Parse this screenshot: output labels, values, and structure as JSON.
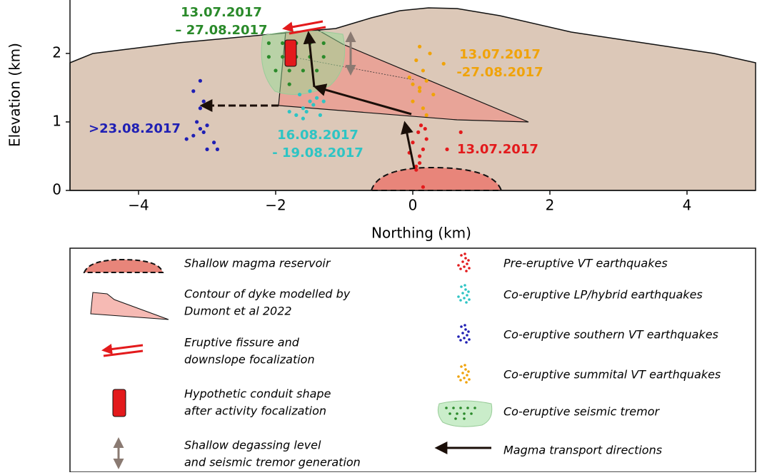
{
  "chart_data": {
    "type": "scatter",
    "x_label": "Northing (km)",
    "y_label": "Elevation (km)",
    "xlim": [
      -5,
      5
    ],
    "ylim": [
      0,
      2.78
    ],
    "xticks": [
      {
        "value": -4,
        "label": "−4"
      },
      {
        "value": -2,
        "label": "−2"
      },
      0,
      2,
      4
    ],
    "yticks": [
      0,
      1,
      2
    ],
    "series": [
      {
        "name": "Pre-eruptive VT earthquakes",
        "color": "#e31a1c",
        "labels": [
          "13.07.2017"
        ],
        "x": [
          0.05,
          0.1,
          0.15,
          0.0,
          0.2,
          0.08,
          0.12,
          -0.05,
          0.18,
          0.1,
          0.7,
          0.5,
          0.15,
          0.05
        ],
        "values": [
          0.35,
          0.5,
          0.6,
          0.7,
          0.75,
          0.85,
          0.95,
          0.55,
          0.9,
          0.4,
          0.85,
          0.6,
          0.05,
          0.3
        ]
      },
      {
        "name": "Co-eruptive LP/hybrid earthquakes",
        "color": "#2ec4c4",
        "labels": [
          "16.08.2017",
          "- 19.08.2017"
        ],
        "x": [
          -1.7,
          -1.6,
          -1.5,
          -1.4,
          -1.55,
          -1.45,
          -1.65,
          -1.35,
          -1.5,
          -1.8,
          -1.6,
          -1.3
        ],
        "values": [
          1.1,
          1.2,
          1.3,
          1.35,
          1.15,
          1.25,
          1.4,
          1.1,
          1.45,
          1.15,
          1.05,
          1.3
        ]
      },
      {
        "name": "Co-eruptive southern VT earthquakes",
        "color": "#1f1fb4",
        "labels": [
          ">23.08.2017"
        ],
        "x": [
          -3.2,
          -3.1,
          -3.0,
          -3.15,
          -3.05,
          -3.1,
          -3.2,
          -2.9,
          -3.0,
          -3.1,
          -2.85,
          -3.3,
          -3.05,
          -3.1
        ],
        "values": [
          0.8,
          0.9,
          0.95,
          1.0,
          0.85,
          1.2,
          1.45,
          0.7,
          0.6,
          1.6,
          0.6,
          0.75,
          1.3,
          0.9
        ]
      },
      {
        "name": "Co-eruptive summital VT earthquakes",
        "color": "#f0a30a",
        "labels": [
          "13.07.2017",
          "-27.08.2017"
        ],
        "x": [
          0.0,
          0.1,
          0.2,
          0.15,
          0.05,
          0.25,
          0.1,
          0.3,
          -0.05,
          0.15,
          0.45,
          0.2,
          0.1,
          0.0
        ],
        "values": [
          1.3,
          1.5,
          1.6,
          1.75,
          1.9,
          2.0,
          2.1,
          1.4,
          1.65,
          1.2,
          1.85,
          1.1,
          1.45,
          1.55
        ]
      },
      {
        "name": "Co-eruptive seismic tremor",
        "color": "#2a8a2a",
        "labels": [
          "13.07.2017",
          "– 27.08.2017"
        ],
        "x": [
          -2.1,
          -1.9,
          -1.7,
          -1.5,
          -1.3,
          -2.1,
          -1.9,
          -1.7,
          -1.5,
          -1.3,
          -2.0,
          -1.8,
          -1.6,
          -1.4,
          -1.8
        ],
        "values": [
          2.15,
          2.15,
          2.15,
          2.15,
          2.15,
          1.95,
          1.95,
          1.95,
          1.95,
          1.95,
          1.75,
          1.75,
          1.75,
          1.75,
          1.55
        ]
      }
    ],
    "legend": {
      "items": [
        [
          "Shallow magma reservoir"
        ],
        [
          "Contour of dyke modelled by",
          "Dumont et al 2022"
        ],
        [
          "Eruptive fissure and",
          "downslope focalization"
        ],
        [
          "Hypothetic conduit shape",
          "after activity focalization"
        ],
        [
          "Shallow degassing level",
          "and seismic tremor generation"
        ]
      ],
      "arrow": "Magma transport directions"
    }
  }
}
